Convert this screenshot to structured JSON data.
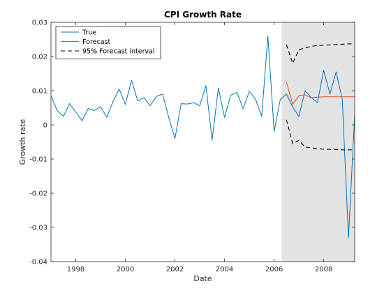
{
  "chart_data": {
    "type": "line",
    "title": "CPI Growth Rate",
    "xlabel": "Date",
    "ylabel": "Growth rate",
    "xlim": [
      1997.0,
      2009.25
    ],
    "ylim": [
      -0.04,
      0.03
    ],
    "x_ticks": [
      1998,
      2000,
      2002,
      2004,
      2006,
      2008
    ],
    "x_tick_labels": [
      "1998",
      "2000",
      "2002",
      "2004",
      "2006",
      "2008"
    ],
    "y_ticks": [
      -0.04,
      -0.03,
      -0.02,
      -0.01,
      0,
      0.01,
      0.02,
      0.03
    ],
    "y_tick_labels": [
      "-0.04",
      "-0.03",
      "-0.02",
      "-0.01",
      "0",
      "0.01",
      "0.02",
      "0.03"
    ],
    "grid": false,
    "legend_position": "top-left",
    "forecast_region": {
      "x_start": 2006.3,
      "x_end": 2009.25,
      "color": "#e3e3e3"
    },
    "series": [
      {
        "name": "True",
        "style": "solid",
        "color": "#0072bd",
        "x": [
          1997.0,
          1997.25,
          1997.5,
          1997.75,
          1998.0,
          1998.25,
          1998.5,
          1998.75,
          1999.0,
          1999.25,
          1999.5,
          1999.75,
          2000.0,
          2000.25,
          2000.5,
          2000.75,
          2001.0,
          2001.25,
          2001.5,
          2001.75,
          2002.0,
          2002.25,
          2002.5,
          2002.75,
          2003.0,
          2003.25,
          2003.5,
          2003.75,
          2004.0,
          2004.25,
          2004.5,
          2004.75,
          2005.0,
          2005.25,
          2005.5,
          2005.75,
          2006.0,
          2006.25,
          2006.5,
          2006.75,
          2007.0,
          2007.25,
          2007.5,
          2007.75,
          2008.0,
          2008.25,
          2008.5,
          2008.75,
          2009.0,
          2009.25
        ],
        "values": [
          0.0085,
          0.0042,
          0.0025,
          0.0062,
          0.0038,
          0.0012,
          0.0048,
          0.0042,
          0.0053,
          0.0022,
          0.0068,
          0.0105,
          0.006,
          0.013,
          0.007,
          0.008,
          0.0056,
          0.0083,
          0.009,
          0.0022,
          -0.004,
          0.0062,
          0.0061,
          0.0065,
          0.0056,
          0.0115,
          -0.0045,
          0.0108,
          0.0022,
          0.0087,
          0.0095,
          0.0048,
          0.0098,
          0.0075,
          0.0025,
          0.026,
          -0.002,
          0.0075,
          0.009,
          0.0052,
          0.0025,
          0.01,
          0.008,
          0.0065,
          0.016,
          0.009,
          0.0155,
          0.0075,
          -0.033,
          0.003
        ]
      },
      {
        "name": "Forecast",
        "style": "solid",
        "color": "#d95319",
        "x": [
          2006.5,
          2006.75,
          2007.0,
          2007.25,
          2007.5,
          2007.75,
          2008.0,
          2008.25,
          2008.5,
          2008.75,
          2009.0,
          2009.25
        ],
        "values": [
          0.0125,
          0.006,
          0.0085,
          0.0088,
          0.0079,
          0.0081,
          0.0082,
          0.0082,
          0.0082,
          0.0082,
          0.0082,
          0.0082
        ]
      },
      {
        "name": "95% Forecast interval",
        "style": "dashed",
        "color": "#000000",
        "x": [
          2006.5,
          2006.75,
          2007.0,
          2007.25,
          2007.5,
          2007.75,
          2008.0,
          2008.25,
          2008.5,
          2008.75,
          2009.0,
          2009.25
        ],
        "values": [
          0.0235,
          0.018,
          0.022,
          0.0225,
          0.023,
          0.0232,
          0.0233,
          0.0234,
          0.0235,
          0.0236,
          0.0237,
          0.0237
        ]
      },
      {
        "name": "",
        "style": "dashed",
        "color": "#000000",
        "x": [
          2006.5,
          2006.75,
          2007.0,
          2007.25,
          2007.5,
          2007.75,
          2008.0,
          2008.25,
          2008.5,
          2008.75,
          2009.0,
          2009.25
        ],
        "values": [
          0.0015,
          -0.0055,
          -0.0045,
          -0.0065,
          -0.0067,
          -0.007,
          -0.0071,
          -0.0072,
          -0.0072,
          -0.0073,
          -0.0073,
          -0.0073
        ]
      }
    ]
  }
}
